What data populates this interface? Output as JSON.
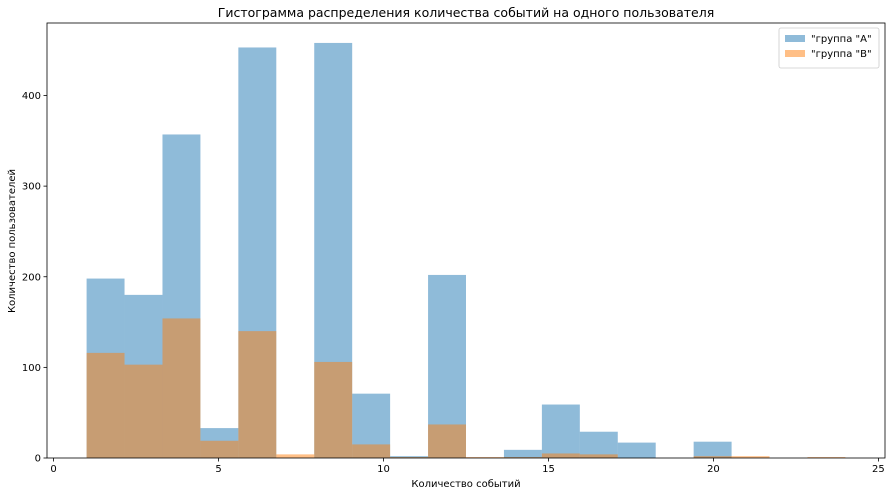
{
  "chart_data": {
    "type": "bar",
    "title": "Гистограмма распределения количества событий на одного пользователя",
    "xlabel": "Количество событий",
    "ylabel": "Количество пользователей",
    "xlim": [
      -0.2,
      25.2
    ],
    "ylim": [
      0,
      480
    ],
    "xticks": [
      0,
      5,
      10,
      15,
      20,
      25
    ],
    "yticks": [
      0,
      100,
      200,
      300,
      400
    ],
    "grid": false,
    "legend_position": "top-right",
    "series": [
      {
        "name": "\"группа \"A\"",
        "color": "#1f77b4",
        "opacity": 0.5,
        "bins": [
          {
            "x0": 1.0,
            "x1": 2.15,
            "value": 198
          },
          {
            "x0": 2.15,
            "x1": 3.3,
            "value": 180
          },
          {
            "x0": 3.3,
            "x1": 4.45,
            "value": 357
          },
          {
            "x0": 4.45,
            "x1": 5.6,
            "value": 33
          },
          {
            "x0": 5.6,
            "x1": 6.75,
            "value": 453
          },
          {
            "x0": 6.75,
            "x1": 7.9,
            "value": 0
          },
          {
            "x0": 7.9,
            "x1": 9.05,
            "value": 458
          },
          {
            "x0": 9.05,
            "x1": 10.2,
            "value": 71
          },
          {
            "x0": 10.2,
            "x1": 11.35,
            "value": 2
          },
          {
            "x0": 11.35,
            "x1": 12.5,
            "value": 202
          },
          {
            "x0": 12.5,
            "x1": 13.65,
            "value": 0
          },
          {
            "x0": 13.65,
            "x1": 14.8,
            "value": 9
          },
          {
            "x0": 14.8,
            "x1": 15.95,
            "value": 59
          },
          {
            "x0": 15.95,
            "x1": 17.1,
            "value": 29
          },
          {
            "x0": 17.1,
            "x1": 18.25,
            "value": 17
          },
          {
            "x0": 18.25,
            "x1": 19.4,
            "value": 0
          },
          {
            "x0": 19.4,
            "x1": 20.55,
            "value": 18
          },
          {
            "x0": 20.55,
            "x1": 21.7,
            "value": 0
          }
        ]
      },
      {
        "name": "\"группа \"B\"",
        "color": "#ff7f0e",
        "opacity": 0.5,
        "bins": [
          {
            "x0": 1.0,
            "x1": 2.15,
            "value": 116
          },
          {
            "x0": 2.15,
            "x1": 3.3,
            "value": 103
          },
          {
            "x0": 3.3,
            "x1": 4.45,
            "value": 154
          },
          {
            "x0": 4.45,
            "x1": 5.6,
            "value": 19
          },
          {
            "x0": 5.6,
            "x1": 6.75,
            "value": 140
          },
          {
            "x0": 6.75,
            "x1": 7.9,
            "value": 4
          },
          {
            "x0": 7.9,
            "x1": 9.05,
            "value": 106
          },
          {
            "x0": 9.05,
            "x1": 10.2,
            "value": 15
          },
          {
            "x0": 10.2,
            "x1": 11.35,
            "value": 1
          },
          {
            "x0": 11.35,
            "x1": 12.5,
            "value": 37
          },
          {
            "x0": 12.5,
            "x1": 13.65,
            "value": 1
          },
          {
            "x0": 13.65,
            "x1": 14.8,
            "value": 1
          },
          {
            "x0": 14.8,
            "x1": 15.95,
            "value": 5
          },
          {
            "x0": 15.95,
            "x1": 17.1,
            "value": 4
          },
          {
            "x0": 17.1,
            "x1": 18.25,
            "value": 0
          },
          {
            "x0": 18.25,
            "x1": 19.4,
            "value": 0
          },
          {
            "x0": 19.4,
            "x1": 20.55,
            "value": 2
          },
          {
            "x0": 20.55,
            "x1": 21.7,
            "value": 2
          },
          {
            "x0": 21.7,
            "x1": 22.85,
            "value": 0
          },
          {
            "x0": 22.85,
            "x1": 24.0,
            "value": 1
          }
        ]
      }
    ]
  }
}
